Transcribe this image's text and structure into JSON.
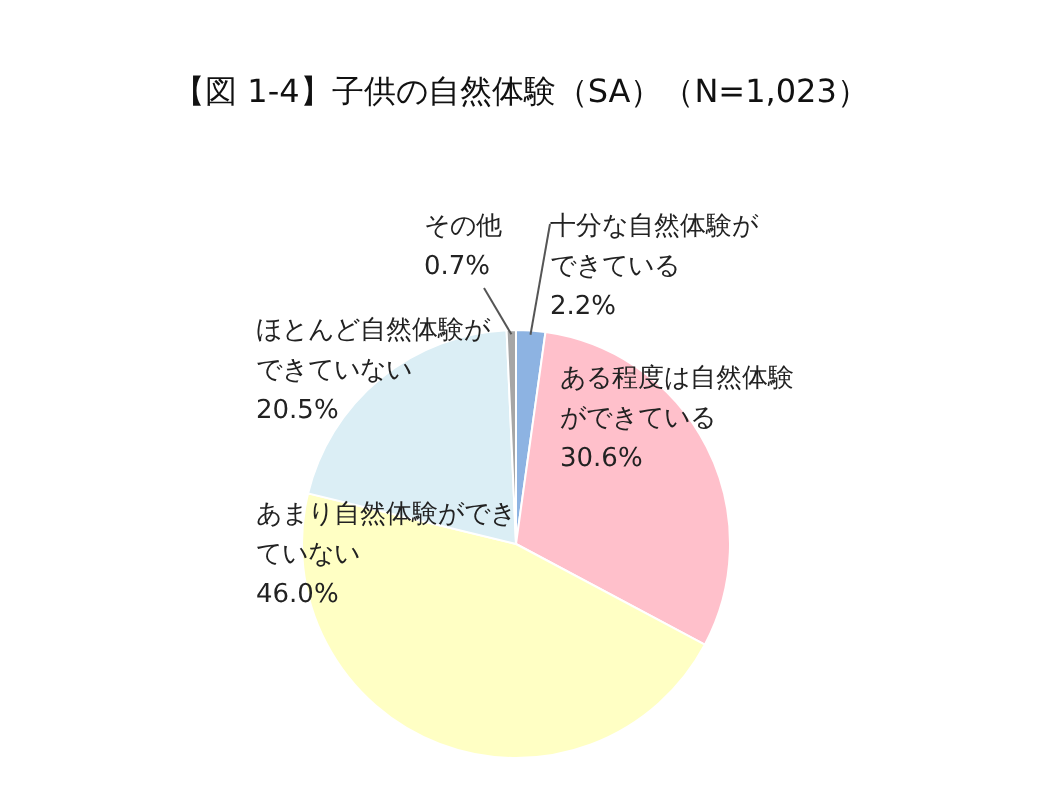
{
  "chart_data": {
    "type": "pie",
    "title": "【図 1-4】子供の自然体験（SA）（N=1,023）",
    "categories": [
      "十分な自然体験ができている",
      "ある程度は自然体験ができている",
      "あまり自然体験ができていない",
      "ほとんど自然体験ができていない",
      "その他"
    ],
    "values": [
      2.2,
      30.6,
      46.0,
      20.5,
      0.7
    ],
    "colors": [
      "#8db3e2",
      "#ffc0cb",
      "#ffffc4",
      "#dbeef5",
      "#a6a6a6"
    ],
    "value_labels": [
      "2.2%",
      "30.6%",
      "46.0%",
      "20.5%",
      "0.7%"
    ]
  }
}
